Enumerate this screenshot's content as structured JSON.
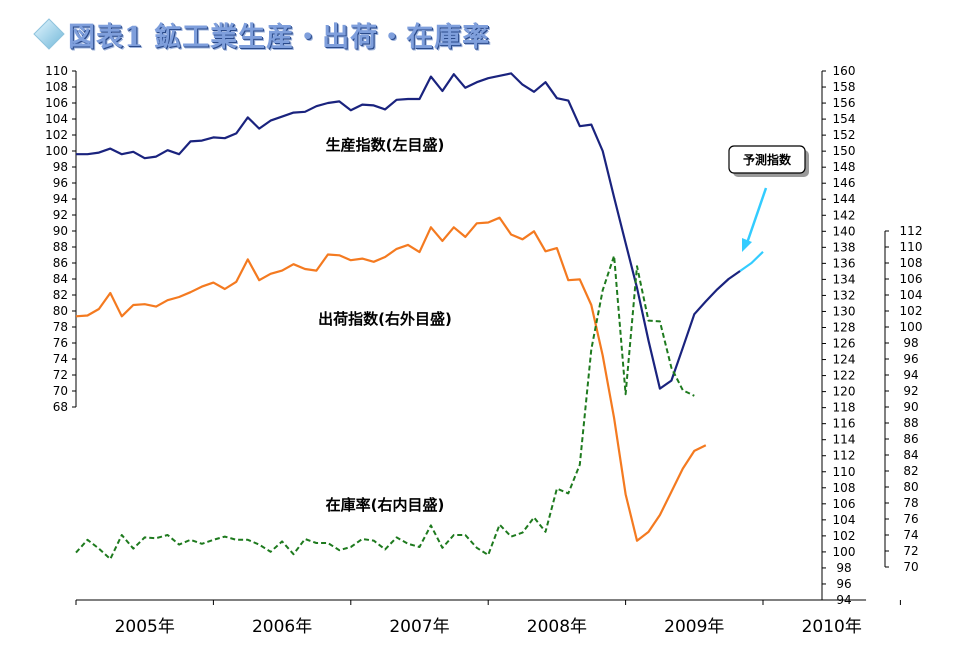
{
  "title": "図表1 鉱工業生産・出荷・在庫率",
  "colors": {
    "production": "#1a237e",
    "shipments": "#f47a20",
    "inventory": "#1e7a1e",
    "forecast": "#33ccff",
    "title": "#7f9fdc"
  },
  "icons": {
    "title_marker": "diamond-icon"
  },
  "chart_data": {
    "type": "line",
    "x_start": "2005-01",
    "x_labels": [
      "2005年",
      "2006年",
      "2007年",
      "2008年",
      "2009年",
      "2010年"
    ],
    "axes": {
      "left": {
        "ylim": [
          68,
          110
        ],
        "step": 2
      },
      "right_outer": {
        "ylim": [
          94,
          160
        ],
        "step": 2
      },
      "right_inner": {
        "ylim": [
          70,
          112
        ],
        "step": 2
      }
    },
    "annotations": [
      "生産指数(左目盛)",
      "出荷指数(右外目盛)",
      "在庫率(右内目盛)"
    ],
    "callout": "予測指数",
    "series": [
      {
        "name": "生産指数(左目盛)",
        "axis": "left",
        "style": "solid",
        "values": [
          99.6,
          99.6,
          99.8,
          100.3,
          99.6,
          99.9,
          99.1,
          99.3,
          100.1,
          99.6,
          101.2,
          101.3,
          101.7,
          101.6,
          102.2,
          104.2,
          102.8,
          103.8,
          104.3,
          104.8,
          104.9,
          105.6,
          106.0,
          106.2,
          105.1,
          105.8,
          105.7,
          105.2,
          106.4,
          106.5,
          106.5,
          109.3,
          107.5,
          109.6,
          107.9,
          108.6,
          109.1,
          109.4,
          109.7,
          108.3,
          107.4,
          108.6,
          106.6,
          106.3,
          103.1,
          103.3,
          100.0,
          94.2,
          88.5,
          82.9,
          76.3,
          70.3,
          71.3,
          75.4,
          79.6,
          81.2,
          82.7,
          84.0,
          85.0
        ]
      },
      {
        "name": "予測指数",
        "axis": "left",
        "style": "solid",
        "values": [
          85.0,
          86.0,
          87.4
        ],
        "offset": 58
      },
      {
        "name": "出荷指数(右外目盛)",
        "axis": "right_outer",
        "style": "solid",
        "values": [
          129.4,
          129.5,
          130.3,
          132.3,
          129.4,
          130.8,
          130.9,
          130.6,
          131.4,
          131.8,
          132.4,
          133.1,
          133.6,
          132.8,
          133.7,
          136.5,
          133.9,
          134.7,
          135.1,
          135.9,
          135.3,
          135.1,
          137.1,
          137.0,
          136.4,
          136.6,
          136.2,
          136.8,
          137.8,
          138.3,
          137.4,
          140.5,
          138.8,
          140.5,
          139.3,
          141.0,
          141.1,
          141.7,
          139.6,
          139.0,
          140.0,
          137.5,
          137.9,
          133.9,
          134.0,
          130.8,
          124.5,
          116.7,
          107.2,
          101.4,
          102.5,
          104.6,
          107.5,
          110.4,
          112.6,
          113.3
        ]
      },
      {
        "name": "在庫率(右内目盛)",
        "axis": "right_inner",
        "style": "dashed",
        "values": [
          71.8,
          73.4,
          72.3,
          71.0,
          74.0,
          72.3,
          73.7,
          73.6,
          74.0,
          72.8,
          73.4,
          72.9,
          73.4,
          73.8,
          73.4,
          73.4,
          72.8,
          71.9,
          73.2,
          71.6,
          73.5,
          73.0,
          73.0,
          72.1,
          72.5,
          73.5,
          73.3,
          72.2,
          73.7,
          72.9,
          72.5,
          75.2,
          72.4,
          74.0,
          74.0,
          72.4,
          71.5,
          75.3,
          73.8,
          74.3,
          76.2,
          74.4,
          79.8,
          79.2,
          82.8,
          97.2,
          104.6,
          108.9,
          91.6,
          107.6,
          100.8,
          100.7,
          94.9,
          92.1,
          91.4
        ]
      }
    ]
  }
}
